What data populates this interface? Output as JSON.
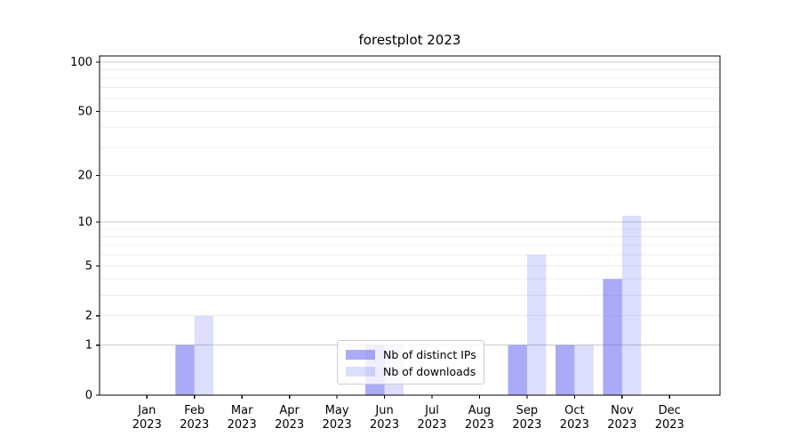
{
  "title": "forestplot 2023",
  "colors": {
    "bar_base": "85,85,240",
    "dark_alpha": 0.5,
    "light_alpha": 0.2,
    "major_grid": "#c9c9c9",
    "minor_grid": "#ececec",
    "axis": "#000000",
    "legend_border": "#cccccc"
  },
  "chart_data": {
    "type": "bar",
    "title": "forestplot 2023",
    "categories": [
      "Jan 2023",
      "Feb 2023",
      "Mar 2023",
      "Apr 2023",
      "May 2023",
      "Jun 2023",
      "Jul 2023",
      "Aug 2023",
      "Sep 2023",
      "Oct 2023",
      "Nov 2023",
      "Dec 2023"
    ],
    "series": [
      {
        "name": "Nb of distinct IPs",
        "values": [
          0,
          1,
          0,
          0,
          0,
          1,
          0,
          0,
          1,
          1,
          4,
          0
        ]
      },
      {
        "name": "Nb of downloads",
        "values": [
          0,
          2,
          0,
          0,
          0,
          1,
          0,
          0,
          6,
          1,
          11,
          0
        ]
      }
    ],
    "y_scale": "log10(value+1)",
    "y_ticks_labeled": [
      0,
      1,
      2,
      5,
      10,
      20,
      50,
      100
    ],
    "y_grid_major": [
      1,
      10,
      100
    ],
    "y_grid_minor": [
      2,
      3,
      4,
      5,
      6,
      7,
      8,
      9,
      20,
      30,
      40,
      50,
      60,
      70,
      80,
      90
    ],
    "ylim": [
      0,
      109
    ],
    "grid": "both",
    "legend_position": "lower center"
  }
}
